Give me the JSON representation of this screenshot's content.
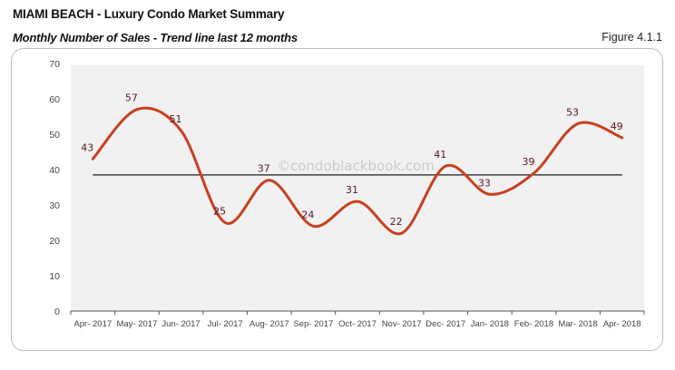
{
  "header": {
    "title": "MIAMI BEACH - Luxury Condo Market Summary",
    "subtitle": "Monthly Number of Sales - Trend line last 12 months",
    "figure": "Figure 4.1.1"
  },
  "watermark": "©condoblackbook.com",
  "colors": {
    "line": "#c8401f",
    "trend": "#1a1a1a",
    "plot_bg": "#f1f1f1",
    "data_label": "#5a1620"
  },
  "chart_data": {
    "type": "line",
    "title": "Monthly Number of Sales - Trend line last 12 months",
    "xlabel": "",
    "ylabel": "",
    "categories": [
      "Apr- 2017",
      "May- 2017",
      "Jun- 2017",
      "Jul- 2017",
      "Aug- 2017",
      "Sep- 2017",
      "Oct- 2017",
      "Nov- 2017",
      "Dec- 2017",
      "Jan- 2018",
      "Feb- 2018",
      "Mar- 2018",
      "Apr- 2018"
    ],
    "series": [
      {
        "name": "Number of Sales",
        "values": [
          43,
          57,
          51,
          25,
          37,
          24,
          31,
          22,
          41,
          33,
          39,
          53,
          49
        ]
      },
      {
        "name": "Trend line (average)",
        "values": [
          38.5,
          38.5,
          38.5,
          38.5,
          38.5,
          38.5,
          38.5,
          38.5,
          38.5,
          38.5,
          38.5,
          38.5,
          38.5
        ]
      }
    ],
    "y_ticks": [
      0,
      10,
      20,
      30,
      40,
      50,
      60,
      70
    ],
    "ylim": [
      0,
      70
    ],
    "grid": false,
    "legend": "none",
    "smoothed": true,
    "data_labels": true
  }
}
